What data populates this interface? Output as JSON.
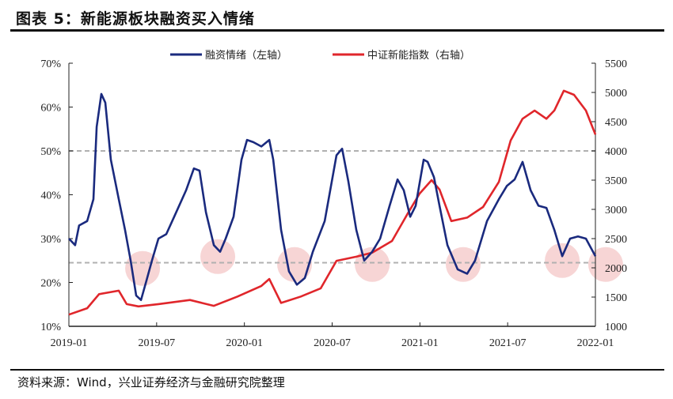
{
  "title": "图表 5：新能源板块融资买入情绪",
  "source": "资料来源：Wind，兴业证券经济与金融研究院整理",
  "chart_data": {
    "type": "line",
    "x_unit": "months since 2019-01",
    "x_ticks": [
      {
        "m": 0,
        "label": "2019-01"
      },
      {
        "m": 6,
        "label": "2019-07"
      },
      {
        "m": 12,
        "label": "2020-01"
      },
      {
        "m": 18,
        "label": "2020-07"
      },
      {
        "m": 24,
        "label": "2021-01"
      },
      {
        "m": 30,
        "label": "2021-07"
      },
      {
        "m": 36,
        "label": "2022-01"
      }
    ],
    "y_left": {
      "range": [
        10,
        70
      ],
      "ticks": [
        "10%",
        "20%",
        "30%",
        "40%",
        "50%",
        "60%",
        "70%"
      ]
    },
    "y_right": {
      "range": [
        1000,
        5500
      ],
      "ticks": [
        "1000",
        "1500",
        "2000",
        "2500",
        "3000",
        "3500",
        "4000",
        "4500",
        "5000",
        "5500"
      ]
    },
    "series": [
      {
        "name": "融资情绪（左轴）",
        "axis": "left",
        "color": "#1a2a7e",
        "points": [
          [
            0,
            30
          ],
          [
            0.43,
            28.5
          ],
          [
            0.7,
            33
          ],
          [
            1.25,
            34
          ],
          [
            1.68,
            39
          ],
          [
            1.9,
            55.5
          ],
          [
            2.22,
            63
          ],
          [
            2.49,
            61
          ],
          [
            2.87,
            48
          ],
          [
            3.41,
            39
          ],
          [
            3.84,
            32
          ],
          [
            4.22,
            25
          ],
          [
            4.6,
            17
          ],
          [
            4.93,
            16
          ],
          [
            5.31,
            20.5
          ],
          [
            5.68,
            25
          ],
          [
            6.12,
            30
          ],
          [
            6.66,
            31
          ],
          [
            7.2,
            35
          ],
          [
            8.01,
            41
          ],
          [
            8.55,
            46
          ],
          [
            8.93,
            45.5
          ],
          [
            9.37,
            36
          ],
          [
            9.91,
            28.5
          ],
          [
            10.34,
            27
          ],
          [
            10.72,
            30
          ],
          [
            11.26,
            35
          ],
          [
            11.8,
            48
          ],
          [
            12.18,
            52.5
          ],
          [
            12.61,
            52
          ],
          [
            13.16,
            51
          ],
          [
            13.7,
            52.5
          ],
          [
            13.97,
            48
          ],
          [
            14.51,
            32
          ],
          [
            15.05,
            22.5
          ],
          [
            15.59,
            19.5
          ],
          [
            16.13,
            21
          ],
          [
            16.68,
            27
          ],
          [
            17.49,
            34
          ],
          [
            18.3,
            49
          ],
          [
            18.68,
            50.5
          ],
          [
            19.11,
            43
          ],
          [
            19.65,
            32
          ],
          [
            20.19,
            25
          ],
          [
            20.74,
            27
          ],
          [
            21.28,
            30
          ],
          [
            21.93,
            37.5
          ],
          [
            22.47,
            43.5
          ],
          [
            22.9,
            41
          ],
          [
            23.34,
            35
          ],
          [
            23.71,
            37.5
          ],
          [
            24.26,
            48
          ],
          [
            24.53,
            47.5
          ],
          [
            24.96,
            44
          ],
          [
            25.34,
            37.5
          ],
          [
            25.88,
            28.5
          ],
          [
            26.58,
            23
          ],
          [
            27.23,
            22
          ],
          [
            27.77,
            25
          ],
          [
            28.59,
            34
          ],
          [
            29.4,
            39
          ],
          [
            29.94,
            42
          ],
          [
            30.48,
            43.5
          ],
          [
            31.02,
            47.5
          ],
          [
            31.57,
            41
          ],
          [
            32.11,
            37.5
          ],
          [
            32.65,
            37
          ],
          [
            33.19,
            32
          ],
          [
            33.73,
            26
          ],
          [
            34.27,
            30
          ],
          [
            34.81,
            30.5
          ],
          [
            35.35,
            30
          ],
          [
            36,
            26
          ]
        ]
      },
      {
        "name": "中证新能指数（右轴）",
        "axis": "right",
        "color": "#e0262b",
        "points": [
          [
            0,
            1200
          ],
          [
            1.25,
            1310
          ],
          [
            2.06,
            1550
          ],
          [
            3.41,
            1610
          ],
          [
            3.95,
            1380
          ],
          [
            4.76,
            1340
          ],
          [
            6.12,
            1380
          ],
          [
            8.28,
            1450
          ],
          [
            9.91,
            1350
          ],
          [
            11.53,
            1510
          ],
          [
            13.16,
            1690
          ],
          [
            13.7,
            1810
          ],
          [
            14.51,
            1400
          ],
          [
            15.86,
            1510
          ],
          [
            17.22,
            1650
          ],
          [
            18.3,
            2120
          ],
          [
            19.65,
            2190
          ],
          [
            20.74,
            2260
          ],
          [
            22.09,
            2460
          ],
          [
            23.17,
            2930
          ],
          [
            23.98,
            3270
          ],
          [
            24.8,
            3500
          ],
          [
            25.34,
            3340
          ],
          [
            26.15,
            2800
          ],
          [
            27.23,
            2860
          ],
          [
            28.32,
            3040
          ],
          [
            29.4,
            3470
          ],
          [
            30.21,
            4180
          ],
          [
            31.02,
            4550
          ],
          [
            31.84,
            4690
          ],
          [
            32.65,
            4550
          ],
          [
            33.19,
            4690
          ],
          [
            33.84,
            5030
          ],
          [
            34.54,
            4960
          ],
          [
            35.35,
            4690
          ],
          [
            36,
            4280
          ]
        ]
      }
    ],
    "reference_lines": [
      {
        "axis": "left",
        "value": 50
      },
      {
        "axis": "left",
        "value": 24.5
      }
    ],
    "highlights": [
      [
        5.04,
        23.2
      ],
      [
        10.18,
        25.9
      ],
      [
        15.43,
        24.1
      ],
      [
        20.74,
        24.1
      ],
      [
        26.96,
        24.1
      ],
      [
        33.73,
        25
      ],
      [
        36.7,
        24.1
      ]
    ],
    "legend_position": "top-center"
  }
}
